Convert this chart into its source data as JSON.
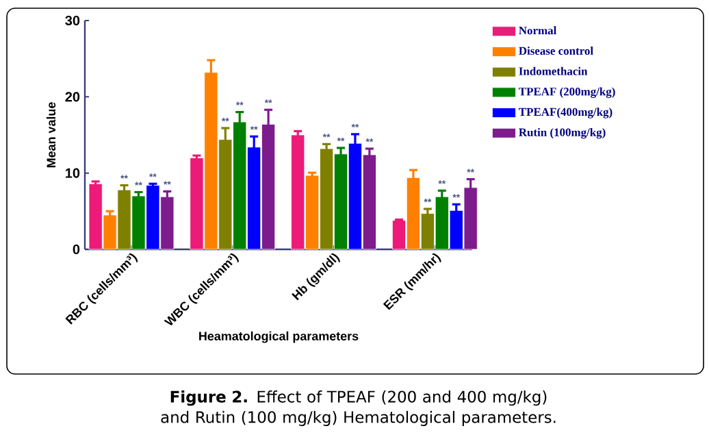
{
  "chart_data": {
    "type": "bar",
    "ylabel": "Mean value",
    "xlabel": "Heamatological parameters",
    "categories": [
      "RBC (cells/mm³)",
      "WBC (cells/mm³)",
      "Hb (gm/dl)",
      "ESR (mm/hr)"
    ],
    "ylim": [
      0,
      30
    ],
    "yticks": [
      0,
      10,
      20,
      30
    ],
    "legend": "top right",
    "series": [
      {
        "name": "Normal",
        "color": "#ec1a78",
        "values": [
          8.6,
          12.0,
          15.0,
          3.8
        ],
        "errors": [
          0.3,
          0.3,
          0.5,
          0.1
        ]
      },
      {
        "name": "Disease control",
        "color": "#ff8000",
        "values": [
          4.5,
          23.2,
          9.7,
          9.4
        ],
        "errors": [
          0.5,
          1.6,
          0.35,
          1.0
        ]
      },
      {
        "name": "Indomethacin",
        "color": "#808000",
        "values": [
          7.8,
          14.4,
          13.2,
          4.7
        ],
        "errors": [
          0.6,
          1.5,
          0.6,
          0.6
        ],
        "value_labels": [
          "**",
          "**",
          "**",
          "**"
        ]
      },
      {
        "name": "TPEAF (200mg/kg)",
        "color": "#008000",
        "values": [
          7.0,
          16.7,
          12.5,
          6.9
        ],
        "errors": [
          0.5,
          1.3,
          0.8,
          0.8
        ],
        "value_labels": [
          "**",
          "**",
          "**",
          "**"
        ]
      },
      {
        "name": "TPEAF(400mg/kg)",
        "color": "#0000ff",
        "values": [
          8.4,
          13.4,
          13.9,
          5.1
        ],
        "errors": [
          0.2,
          1.4,
          1.2,
          0.8
        ],
        "value_labels": [
          "**",
          "**",
          "**",
          "**"
        ]
      },
      {
        "name": "Rutin (100mg/kg)",
        "color": "#7d1c8c",
        "values": [
          6.9,
          16.4,
          12.4,
          8.1
        ],
        "errors": [
          0.7,
          1.9,
          0.8,
          1.1
        ],
        "value_labels": [
          "**",
          "**",
          "**",
          "**"
        ]
      }
    ],
    "annotations": [
      "**Figure 2.** Effect of TPEAF (200 and 400 mg/kg) and Rutin (100 mg/kg) Hematological parameters."
    ]
  }
}
